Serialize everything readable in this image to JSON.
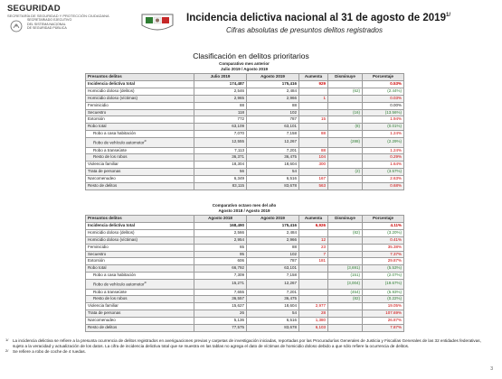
{
  "header": {
    "org_logo": "SEGURIDAD",
    "org_gov": "SECRETARÍA DE SEGURIDAD Y PROTECCIÓN CIUDADANA",
    "org_sec1": "SECRETARIADO EJECUTIVO",
    "org_sec2": "DEL SISTEMA NACIONAL",
    "org_sec3": "DE SEGURIDAD PÚBLICA",
    "title": "Incidencia delictiva nacional al 31 de agosto de 2019",
    "title_mark": "1/",
    "subtitle": "Cifras absolutas de presuntos delitos registrados"
  },
  "section_title": "Clasificación en delitos prioritarios",
  "table1": {
    "caption": "Comparativo mes anterior",
    "period": "Julio 2019 / Agosto 2019",
    "headers": [
      "Presuntos delitos",
      "Julio 2019",
      "Agosto 2019",
      "Aumenta",
      "Disminuye",
      "Porcentaje"
    ],
    "rows": [
      {
        "name": "Incidencia delictiva total",
        "a": "174,487",
        "b": "175,416",
        "up": "929",
        "down": "",
        "pct": "0.53%",
        "bold": true
      },
      {
        "name": "Homicidio doloso (delitos)",
        "a": "2,546",
        "b": "2,484",
        "up": "",
        "down": "(62)",
        "pct": "(2.44%)"
      },
      {
        "name": "Homicidio doloso (víctimas)",
        "a": "2,965",
        "b": "2,966",
        "up": "1",
        "down": "",
        "pct": "0.03%"
      },
      {
        "name": "Feminicidio",
        "a": "88",
        "b": "88",
        "up": "",
        "down": "",
        "pct": "0.00%"
      },
      {
        "name": "Secuestro",
        "a": "118",
        "b": "102",
        "up": "",
        "down": "(16)",
        "pct": "(13.56%)"
      },
      {
        "name": "Extorsión",
        "a": "772",
        "b": "787",
        "up": "15",
        "down": "",
        "pct": "1.94%"
      },
      {
        "name": "Robo total",
        "a": "63,109",
        "b": "63,101",
        "up": "",
        "down": "(8)",
        "pct": "(0.01%)"
      },
      {
        "name": "Robo a casa habitación",
        "a": "7,070",
        "b": "7,158",
        "up": "88",
        "down": "",
        "pct": "1.24%",
        "indent": true
      },
      {
        "name": "Robo de vehículo automotor",
        "mark": "2/",
        "a": "12,555",
        "b": "12,267",
        "up": "",
        "down": "(288)",
        "pct": "(2.29%)",
        "indent": true
      },
      {
        "name": "Robo a transeúnte",
        "a": "7,113",
        "b": "7,201",
        "up": "88",
        "down": "",
        "pct": "1.24%",
        "indent": true
      },
      {
        "name": "Resto de los robos",
        "a": "36,371",
        "b": "36,475",
        "up": "104",
        "down": "",
        "pct": "0.29%",
        "indent": true
      },
      {
        "name": "Violencia familiar",
        "a": "18,304",
        "b": "18,604",
        "up": "300",
        "down": "",
        "pct": "1.64%"
      },
      {
        "name": "Trata de personas",
        "a": "56",
        "b": "54",
        "up": "",
        "down": "(2)",
        "pct": "(3.57%)"
      },
      {
        "name": "Narcomenudeo",
        "a": "6,349",
        "b": "6,516",
        "up": "167",
        "down": "",
        "pct": "2.63%"
      },
      {
        "name": "Resto de delitos",
        "a": "83,115",
        "b": "83,678",
        "up": "563",
        "down": "",
        "pct": "0.68%"
      }
    ]
  },
  "table2": {
    "caption": "Comparativo octavo mes del año",
    "period": "Agosto 2018 / Agosto 2019",
    "headers": [
      "Presuntos delitos",
      "Agosto 2018",
      "Agosto 2019",
      "Aumenta",
      "Disminuye",
      "Porcentaje"
    ],
    "rows": [
      {
        "name": "Incidencia delictiva total",
        "a": "168,490",
        "b": "175,416",
        "up": "6,926",
        "down": "",
        "pct": "4.11%",
        "bold": true
      },
      {
        "name": "Homicidio doloso (delitos)",
        "a": "2,566",
        "b": "2,484",
        "up": "",
        "down": "(82)",
        "pct": "(3.20%)"
      },
      {
        "name": "Homicidio doloso (víctimas)",
        "a": "2,954",
        "b": "2,966",
        "up": "12",
        "down": "",
        "pct": "0.41%"
      },
      {
        "name": "Feminicidio",
        "a": "65",
        "b": "88",
        "up": "23",
        "down": "",
        "pct": "35.38%"
      },
      {
        "name": "Secuestro",
        "a": "95",
        "b": "102",
        "up": "7",
        "down": "",
        "pct": "7.37%"
      },
      {
        "name": "Extorsión",
        "a": "606",
        "b": "787",
        "up": "181",
        "down": "",
        "pct": "29.87%"
      },
      {
        "name": "Robo total",
        "a": "66,792",
        "b": "63,101",
        "up": "",
        "down": "(3,691)",
        "pct": "(5.53%)"
      },
      {
        "name": "Robo a casa habitación",
        "a": "7,309",
        "b": "7,158",
        "up": "",
        "down": "(151)",
        "pct": "(2.07%)",
        "indent": true
      },
      {
        "name": "Robo de vehículo automotor",
        "mark": "2/",
        "a": "15,271",
        "b": "12,267",
        "up": "",
        "down": "(3,004)",
        "pct": "(19.67%)",
        "indent": true
      },
      {
        "name": "Robo a transeúnte",
        "a": "7,655",
        "b": "7,201",
        "up": "",
        "down": "(454)",
        "pct": "(5.93%)",
        "indent": true
      },
      {
        "name": "Resto de los robos",
        "a": "36,557",
        "b": "36,475",
        "up": "",
        "down": "(82)",
        "pct": "(0.22%)",
        "indent": true
      },
      {
        "name": "Violencia familiar",
        "a": "15,627",
        "b": "18,604",
        "up": "2,977",
        "down": "",
        "pct": "19.05%"
      },
      {
        "name": "Trata de personas",
        "a": "26",
        "b": "54",
        "up": "28",
        "down": "",
        "pct": "107.69%"
      },
      {
        "name": "Narcomenudeo",
        "a": "5,136",
        "b": "6,516",
        "up": "1,380",
        "down": "",
        "pct": "26.87%"
      },
      {
        "name": "Resto de delitos",
        "a": "77,575",
        "b": "83,678",
        "up": "6,103",
        "down": "",
        "pct": "7.87%"
      }
    ]
  },
  "notes": [
    {
      "mark": "1/",
      "text": "La incidencia delictiva se refiere a la presunta ocurrencia de delitos registrados en averiguaciones previas y carpetas de investigación iniciadas, reportadas por las Procuradurías Generales de Justicia y Fiscalías Generales de las 32 entidades federativas, sujeto a la veracidad y actualización de los datos. La cifra de incidencia delictiva total que se muestra en las tablas no agrega el dato de víctimas de homicidio doloso debido a que sólo refiere la ocurrencia de delitos."
    },
    {
      "mark": "2/",
      "text": "Se refiere a robo de coche de 4 ruedas."
    }
  ],
  "page_number": "3",
  "colors": {
    "increase": "#cc0000",
    "decrease": "#2e7d32",
    "header_bg": "#e6e6e6"
  }
}
